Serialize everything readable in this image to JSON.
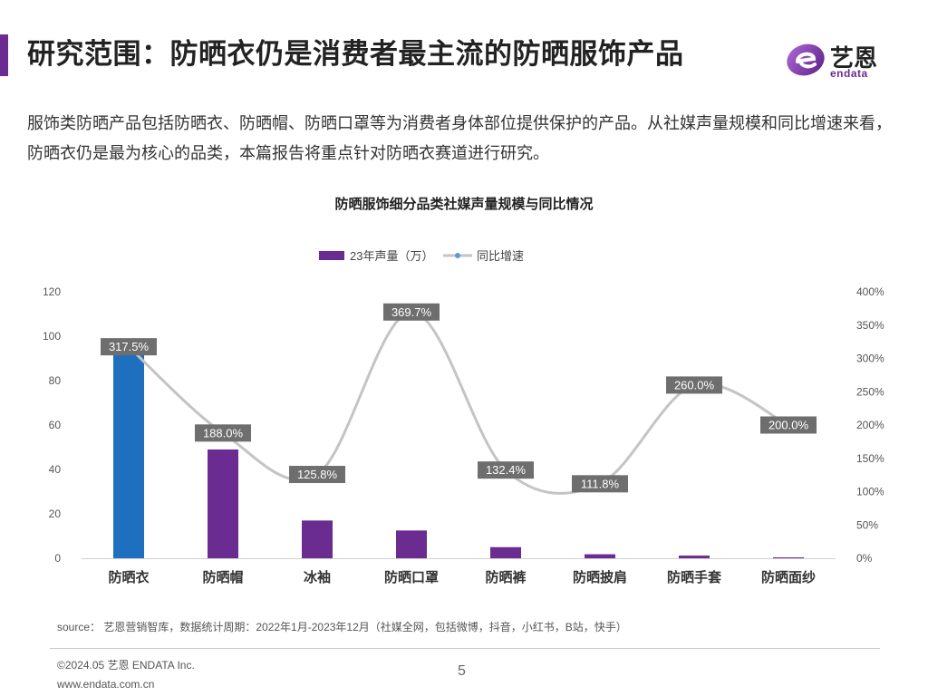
{
  "header": {
    "title": "研究范围：防晒衣仍是消费者最主流的防晒服饰产品",
    "logo_text": "艺恩",
    "logo_sub": "endata"
  },
  "intro": "服饰类防晒产品包括防晒衣、防晒帽、防晒口罩等为消费者身体部位提供保护的产品。从社媒声量规模和同比增速来看，防晒衣仍是最为核心的品类，本篇报告将重点针对防晒衣赛道进行研究。",
  "chart_data": {
    "type": "bar",
    "title": "防晒服饰细分品类社媒声量规模与同比情况",
    "categories": [
      "防晒衣",
      "防晒帽",
      "冰袖",
      "防晒口罩",
      "防晒裤",
      "防晒披肩",
      "防晒手套",
      "防晒面纱"
    ],
    "series": [
      {
        "name": "23年声量（万）",
        "type": "bar",
        "axis": "left",
        "values": [
          93,
          49,
          17,
          12.5,
          5,
          1.8,
          1.2,
          0.4
        ],
        "colors": [
          "#1f6fbf",
          "#6a2c91",
          "#6a2c91",
          "#6a2c91",
          "#6a2c91",
          "#6a2c91",
          "#6a2c91",
          "#6a2c91"
        ]
      },
      {
        "name": "同比增速",
        "type": "line",
        "axis": "right",
        "values": [
          317.5,
          188.0,
          125.8,
          369.7,
          132.4,
          111.8,
          260.0,
          200.0
        ],
        "labels": [
          "317.5%",
          "188.0%",
          "125.8%",
          "369.7%",
          "132.4%",
          "111.8%",
          "260.0%",
          "200.0%"
        ],
        "color": "#c4c4c4"
      }
    ],
    "ylim_left": [
      0,
      120
    ],
    "yticks_left": [
      "0",
      "20",
      "40",
      "60",
      "80",
      "100",
      "120"
    ],
    "ylim_right": [
      0,
      400
    ],
    "yticks_right": [
      "0%",
      "50%",
      "100%",
      "150%",
      "200%",
      "250%",
      "300%",
      "350%",
      "400%"
    ],
    "legend_position": "top-center",
    "grid": false
  },
  "footer": {
    "source": "source： 艺恩营销智库，数据统计周期：2022年1月-2023年12月（社媒全网，包括微博，抖音，小红书，B站，快手）",
    "copyright": "©2024.05  艺恩 ENDATA Inc.",
    "website": "www.endata.com.cn",
    "page_number": "5"
  },
  "colors": {
    "accent": "#6a2c91",
    "highlight_bar": "#1f6fbf",
    "line": "#c4c4c4",
    "label_box": "#6e6e6e"
  }
}
